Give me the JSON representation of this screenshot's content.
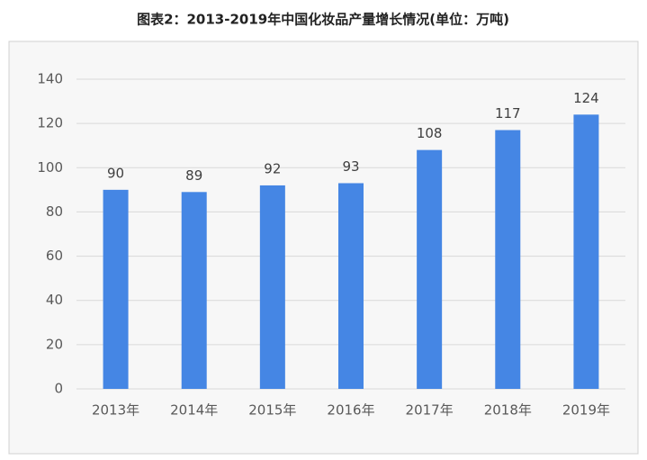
{
  "chart_data": {
    "type": "bar",
    "title": "图表2：2013-2019年中国化妆品产量增长情况(单位：万吨)",
    "categories": [
      "2013年",
      "2014年",
      "2015年",
      "2016年",
      "2017年",
      "2018年",
      "2019年"
    ],
    "values": [
      90,
      89,
      92,
      93,
      108,
      117,
      124
    ],
    "color": "#4586e4",
    "ylim": [
      0,
      140
    ],
    "yticks": [
      0,
      20,
      40,
      60,
      80,
      100,
      120,
      140
    ],
    "grid": true
  }
}
